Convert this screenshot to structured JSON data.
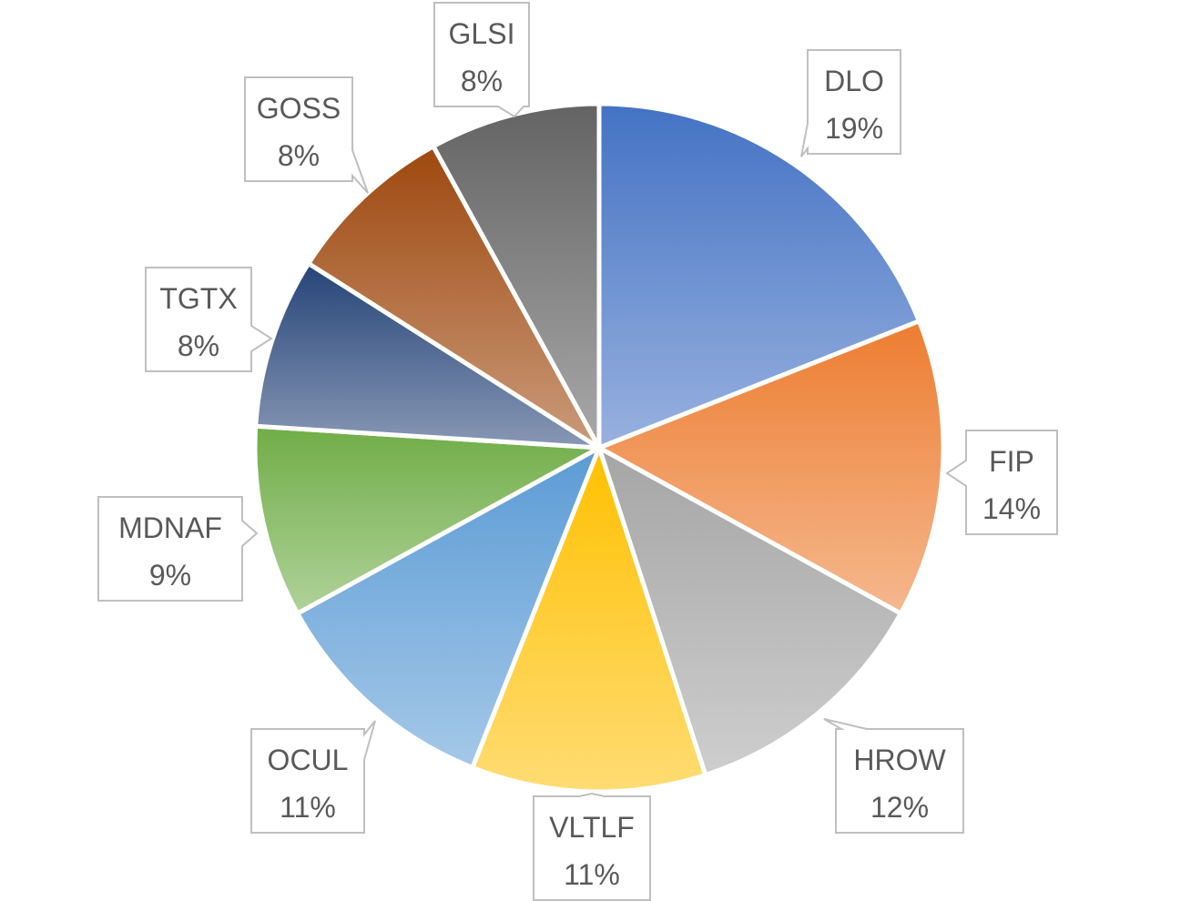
{
  "chart_data": {
    "type": "pie",
    "start_angle_deg": 0,
    "direction": "clockwise",
    "labels": [
      "DLO",
      "FIP",
      "HROW",
      "VLTLF",
      "OCUL",
      "MDNAF",
      "TGTX",
      "GOSS",
      "GLSI"
    ],
    "values": [
      19,
      14,
      12,
      11,
      11,
      9,
      8,
      8,
      8
    ],
    "percent_labels": [
      "19%",
      "14%",
      "12%",
      "11%",
      "11%",
      "9%",
      "8%",
      "8%",
      "8%"
    ],
    "colors": [
      "#4472C4",
      "#ED7D31",
      "#A5A5A5",
      "#FFC000",
      "#5B9BD5",
      "#70AD47",
      "#264478",
      "#9E480E",
      "#636363"
    ],
    "data_labels_style": "callout",
    "legend": "none"
  }
}
